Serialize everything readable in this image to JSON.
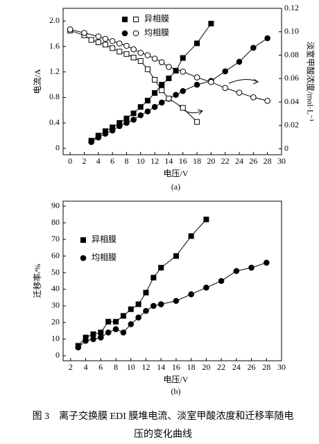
{
  "chart_data": [
    {
      "type": "line",
      "panel_label": "(a)",
      "xlabel": "电压/V",
      "ylabel": "电流/A",
      "y2label": "淡室甲酸浓度/mol·L⁻¹",
      "xlim": [
        -1,
        30
      ],
      "xticks": [
        0,
        2,
        4,
        6,
        8,
        10,
        12,
        14,
        16,
        18,
        20,
        22,
        24,
        26,
        28,
        30
      ],
      "ylim": [
        -0.1,
        2.2
      ],
      "yticks": [
        0,
        0.4,
        0.8,
        1.2,
        1.6,
        {
          "value": 2,
          "label": "2.0"
        }
      ],
      "y2lim": [
        -0.005,
        0.12
      ],
      "y2ticks": [
        0,
        0.02,
        0.04,
        0.06,
        0.08,
        {
          "value": 0.1,
          "label": "0.10"
        },
        0.12
      ],
      "grid": false,
      "series": [
        {
          "name": "异相膜",
          "color": "#000000",
          "marker": "square",
          "filled": true,
          "x": [
            3,
            4,
            5,
            6,
            7,
            8,
            9,
            10,
            11,
            12,
            13,
            14,
            15,
            16,
            18,
            20
          ],
          "values": [
            0.12,
            0.2,
            0.27,
            0.33,
            0.4,
            0.47,
            0.55,
            0.65,
            0.75,
            0.87,
            1.0,
            1.1,
            1.22,
            1.42,
            1.65,
            1.96
          ]
        },
        {
          "name": "均相膜",
          "color": "#000000",
          "marker": "circle",
          "filled": true,
          "x": [
            3,
            4,
            5,
            6,
            7,
            8,
            9,
            10,
            11,
            12,
            13,
            14,
            15,
            16,
            18,
            20,
            22,
            24,
            26,
            28
          ],
          "values": [
            0.1,
            0.17,
            0.23,
            0.28,
            0.35,
            0.4,
            0.45,
            0.52,
            0.58,
            0.65,
            0.72,
            0.78,
            0.84,
            0.9,
            1.0,
            1.06,
            1.21,
            1.36,
            1.58,
            1.73
          ]
        },
        {
          "color": "#000000",
          "marker": "square",
          "filled": false,
          "axis": "y2",
          "x": [
            0,
            2,
            3,
            4,
            5,
            6,
            7,
            8,
            9,
            10,
            11,
            12,
            13,
            14,
            16,
            18
          ],
          "values": [
            0.101,
            0.097,
            0.093,
            0.091,
            0.089,
            0.086,
            0.083,
            0.081,
            0.078,
            0.075,
            0.068,
            0.059,
            0.05,
            0.043,
            0.035,
            0.023
          ]
        },
        {
          "color": "#000000",
          "marker": "circle",
          "filled": false,
          "axis": "y2",
          "x": [
            0,
            2,
            4,
            5,
            6,
            7,
            8,
            9,
            10,
            11,
            12,
            13,
            14,
            16,
            18,
            20,
            22,
            24,
            26,
            28
          ],
          "values": [
            0.102,
            0.099,
            0.096,
            0.094,
            0.092,
            0.09,
            0.088,
            0.085,
            0.082,
            0.08,
            0.077,
            0.074,
            0.07,
            0.066,
            0.061,
            0.057,
            0.052,
            0.048,
            0.044,
            0.041
          ]
        }
      ]
    },
    {
      "type": "line",
      "panel_label": "(b)",
      "xlabel": "电压/V",
      "ylabel": "迁移率/%",
      "xlim": [
        1,
        30
      ],
      "xticks": [
        2,
        4,
        6,
        8,
        10,
        12,
        14,
        16,
        18,
        20,
        22,
        24,
        26,
        28,
        30
      ],
      "ylim": [
        -3,
        93
      ],
      "yticks": [
        0,
        10,
        20,
        30,
        40,
        50,
        60,
        70,
        80,
        90
      ],
      "grid": false,
      "series": [
        {
          "name": "异相膜",
          "color": "#000000",
          "marker": "square",
          "filled": true,
          "x": [
            3,
            4,
            5,
            6,
            7,
            8,
            9,
            10,
            11,
            12,
            13,
            14,
            16,
            18,
            20
          ],
          "values": [
            6,
            11,
            13,
            14,
            20.5,
            20.5,
            24,
            28,
            31,
            38,
            47,
            53,
            60,
            72,
            82
          ]
        },
        {
          "name": "均相膜",
          "color": "#000000",
          "marker": "circle",
          "filled": true,
          "x": [
            3,
            4,
            5,
            6,
            7,
            8,
            9,
            10,
            11,
            12,
            13,
            14,
            16,
            18,
            20,
            22,
            24,
            26,
            28
          ],
          "values": [
            5,
            9,
            10,
            11,
            14,
            16,
            14,
            19,
            23,
            27,
            30,
            31,
            33,
            37,
            41,
            45,
            51,
            53,
            56
          ]
        }
      ]
    }
  ],
  "caption": {
    "label": "图 3",
    "text": "离子交换膜 EDI 膜堆电流、淡室甲酸浓度和迁移率随电压的变化曲线"
  }
}
